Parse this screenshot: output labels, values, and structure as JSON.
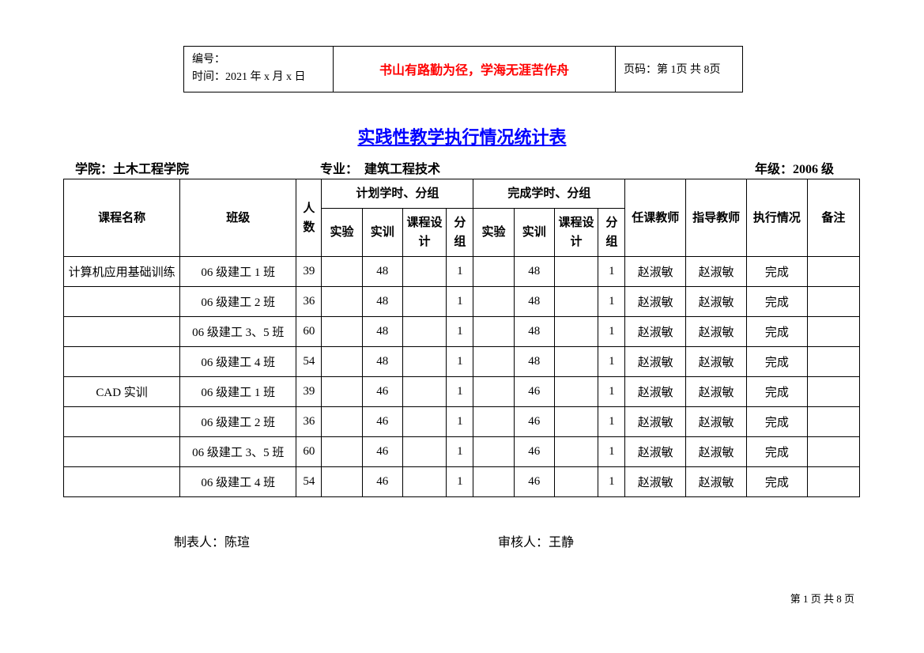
{
  "header": {
    "number_label": "编号：",
    "time_label": "时间：2021 年 x 月 x 日",
    "motto": "书山有路勤为径，学海无涯苦作舟",
    "page_label": "页码：第 1页 共 8页"
  },
  "title": "实践性教学执行情况统计表",
  "meta": {
    "college_label": "学院：",
    "college_value": "土木工程学院",
    "major_label": "专业：",
    "major_value": "建筑工程技术",
    "grade_label": "年级：",
    "grade_value": "2006 级"
  },
  "columns": {
    "course": "课程名称",
    "class": "班级",
    "count": "人数",
    "plan_group": "计划学时、分组",
    "done_group": "完成学时、分组",
    "exp": "实验",
    "train": "实训",
    "design": "课程设计",
    "group": "分组",
    "teacher": "任课教师",
    "advisor": "指导教师",
    "status": "执行情况",
    "note": "备注"
  },
  "rows": [
    {
      "course": "计算机应用基础训练",
      "class": "06 级建工 1 班",
      "count": "39",
      "p_exp": "",
      "p_train": "48",
      "p_design": "",
      "p_group": "1",
      "d_exp": "",
      "d_train": "48",
      "d_design": "",
      "d_group": "1",
      "teacher": "赵淑敏",
      "advisor": "赵淑敏",
      "status": "完成",
      "note": ""
    },
    {
      "course": "",
      "class": "06 级建工 2 班",
      "count": "36",
      "p_exp": "",
      "p_train": "48",
      "p_design": "",
      "p_group": "1",
      "d_exp": "",
      "d_train": "48",
      "d_design": "",
      "d_group": "1",
      "teacher": "赵淑敏",
      "advisor": "赵淑敏",
      "status": "完成",
      "note": ""
    },
    {
      "course": "",
      "class": "06 级建工 3、5 班",
      "count": "60",
      "p_exp": "",
      "p_train": "48",
      "p_design": "",
      "p_group": "1",
      "d_exp": "",
      "d_train": "48",
      "d_design": "",
      "d_group": "1",
      "teacher": "赵淑敏",
      "advisor": "赵淑敏",
      "status": "完成",
      "note": ""
    },
    {
      "course": "",
      "class": "06 级建工 4 班",
      "count": "54",
      "p_exp": "",
      "p_train": "48",
      "p_design": "",
      "p_group": "1",
      "d_exp": "",
      "d_train": "48",
      "d_design": "",
      "d_group": "1",
      "teacher": "赵淑敏",
      "advisor": "赵淑敏",
      "status": "完成",
      "note": ""
    },
    {
      "course": "CAD 实训",
      "class": "06 级建工 1 班",
      "count": "39",
      "p_exp": "",
      "p_train": "46",
      "p_design": "",
      "p_group": "1",
      "d_exp": "",
      "d_train": "46",
      "d_design": "",
      "d_group": "1",
      "teacher": "赵淑敏",
      "advisor": "赵淑敏",
      "status": "完成",
      "note": ""
    },
    {
      "course": "",
      "class": "06 级建工 2 班",
      "count": "36",
      "p_exp": "",
      "p_train": "46",
      "p_design": "",
      "p_group": "1",
      "d_exp": "",
      "d_train": "46",
      "d_design": "",
      "d_group": "1",
      "teacher": "赵淑敏",
      "advisor": "赵淑敏",
      "status": "完成",
      "note": ""
    },
    {
      "course": "",
      "class": "06 级建工 3、5 班",
      "count": "60",
      "p_exp": "",
      "p_train": "46",
      "p_design": "",
      "p_group": "1",
      "d_exp": "",
      "d_train": "46",
      "d_design": "",
      "d_group": "1",
      "teacher": "赵淑敏",
      "advisor": "赵淑敏",
      "status": "完成",
      "note": ""
    },
    {
      "course": "",
      "class": "06 级建工 4 班",
      "count": "54",
      "p_exp": "",
      "p_train": "46",
      "p_design": "",
      "p_group": "1",
      "d_exp": "",
      "d_train": "46",
      "d_design": "",
      "d_group": "1",
      "teacher": "赵淑敏",
      "advisor": "赵淑敏",
      "status": "完成",
      "note": ""
    }
  ],
  "footer": {
    "maker_label": "制表人：",
    "maker_value": "陈瑄",
    "reviewer_label": "审核人：",
    "reviewer_value": "王静"
  },
  "page_number": "第 1 页 共 8 页"
}
